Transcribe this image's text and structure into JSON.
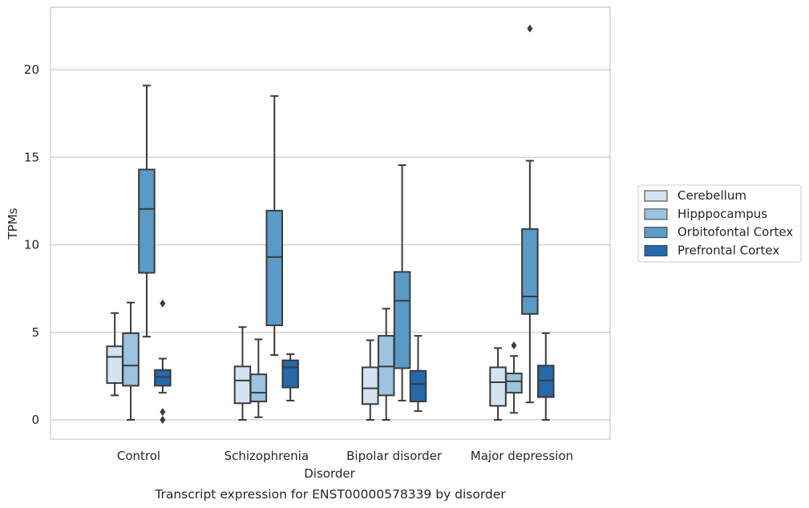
{
  "chart_data": {
    "type": "box",
    "title": "",
    "caption": "Transcript expression for ENST00000578339 by disorder",
    "xlabel": "Disorder",
    "ylabel": "TPMs",
    "ylim": [
      -1.1,
      23.5
    ],
    "yticks": [
      0,
      5,
      10,
      15,
      20
    ],
    "grid": true,
    "legend_position": "right",
    "categories": [
      "Control",
      "Schizophrenia",
      "Bipolar disorder",
      "Major depression"
    ],
    "series": [
      {
        "name": "Cerebellum",
        "color": "#d4e3f2",
        "boxes": [
          {
            "whislo": 1.4,
            "q1": 2.1,
            "med": 3.6,
            "q3": 4.2,
            "whishi": 6.1,
            "fliers": []
          },
          {
            "whislo": 0.0,
            "q1": 0.95,
            "med": 2.25,
            "q3": 3.05,
            "whishi": 5.3,
            "fliers": []
          },
          {
            "whislo": 0.0,
            "q1": 0.9,
            "med": 1.8,
            "q3": 3.0,
            "whishi": 4.55,
            "fliers": []
          },
          {
            "whislo": 0.0,
            "q1": 0.8,
            "med": 2.15,
            "q3": 3.0,
            "whishi": 4.1,
            "fliers": []
          }
        ]
      },
      {
        "name": "Hipppocampus",
        "color": "#9cc3df",
        "boxes": [
          {
            "whislo": 0.0,
            "q1": 1.95,
            "med": 3.1,
            "q3": 4.95,
            "whishi": 6.7,
            "fliers": []
          },
          {
            "whislo": 0.15,
            "q1": 1.05,
            "med": 1.55,
            "q3": 2.6,
            "whishi": 4.6,
            "fliers": []
          },
          {
            "whislo": 0.0,
            "q1": 1.4,
            "med": 3.05,
            "q3": 4.8,
            "whishi": 6.35,
            "fliers": []
          },
          {
            "whislo": 0.4,
            "q1": 1.55,
            "med": 2.2,
            "q3": 2.65,
            "whishi": 3.65,
            "fliers": [
              4.25
            ]
          }
        ]
      },
      {
        "name": "Orbitofontal Cortex",
        "color": "#5a9ac6",
        "boxes": [
          {
            "whislo": 4.75,
            "q1": 8.4,
            "med": 12.05,
            "q3": 14.3,
            "whishi": 19.1,
            "fliers": []
          },
          {
            "whislo": 3.7,
            "q1": 5.4,
            "med": 9.3,
            "q3": 11.95,
            "whishi": 18.5,
            "fliers": []
          },
          {
            "whislo": 1.1,
            "q1": 2.95,
            "med": 6.8,
            "q3": 8.45,
            "whishi": 14.55,
            "fliers": []
          },
          {
            "whislo": 1.0,
            "q1": 6.05,
            "med": 7.05,
            "q3": 10.9,
            "whishi": 14.8,
            "fliers": [
              22.35
            ]
          }
        ]
      },
      {
        "name": "Prefrontal Cortex",
        "color": "#2369ab",
        "boxes": [
          {
            "whislo": 1.55,
            "q1": 1.95,
            "med": 2.45,
            "q3": 2.85,
            "whishi": 3.5,
            "fliers": [
              6.65,
              0.45,
              0.0
            ]
          },
          {
            "whislo": 1.1,
            "q1": 1.85,
            "med": 3.0,
            "q3": 3.4,
            "whishi": 3.75,
            "fliers": []
          },
          {
            "whislo": 0.5,
            "q1": 1.05,
            "med": 2.05,
            "q3": 2.8,
            "whishi": 4.8,
            "fliers": []
          },
          {
            "whislo": 0.0,
            "q1": 1.3,
            "med": 2.25,
            "q3": 3.1,
            "whishi": 4.95,
            "fliers": []
          }
        ]
      }
    ]
  }
}
